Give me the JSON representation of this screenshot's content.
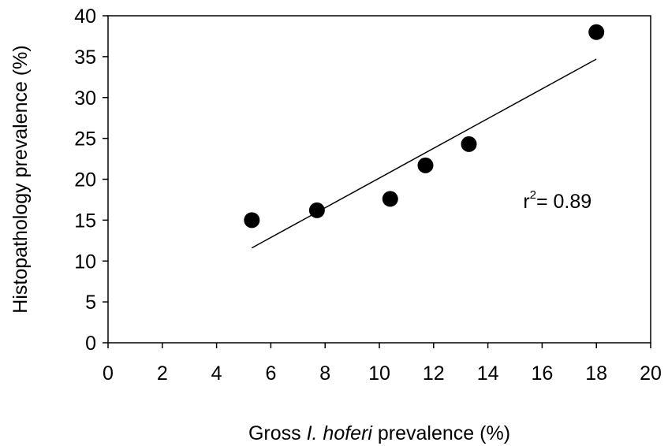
{
  "chart_data": {
    "type": "scatter",
    "title": "",
    "xlabel": {
      "prefix": "Gross ",
      "italic": "I. hoferi",
      "suffix": " prevalence (%)"
    },
    "ylabel": "Histopathology prevalence (%)",
    "xlim": [
      0,
      20
    ],
    "ylim": [
      0,
      40
    ],
    "xticks": [
      0,
      2,
      4,
      6,
      8,
      10,
      12,
      14,
      16,
      18,
      20
    ],
    "yticks": [
      0,
      5,
      10,
      15,
      20,
      25,
      30,
      35,
      40
    ],
    "grid": false,
    "legend": "none",
    "points": [
      {
        "x": 5.3,
        "y": 15.0
      },
      {
        "x": 7.7,
        "y": 16.2
      },
      {
        "x": 10.4,
        "y": 17.6
      },
      {
        "x": 11.7,
        "y": 21.7
      },
      {
        "x": 13.3,
        "y": 24.3
      },
      {
        "x": 18.0,
        "y": 38.0
      }
    ],
    "trendline": {
      "x1": 5.3,
      "y1": 11.6,
      "x2": 18.0,
      "y2": 34.7
    },
    "annotation": {
      "base": "r",
      "sup": "2",
      "text": "= 0.89",
      "x": 15.3,
      "y": 16.5
    },
    "colors": {
      "marker": "#000000",
      "line": "#000000",
      "axis": "#000000"
    }
  }
}
